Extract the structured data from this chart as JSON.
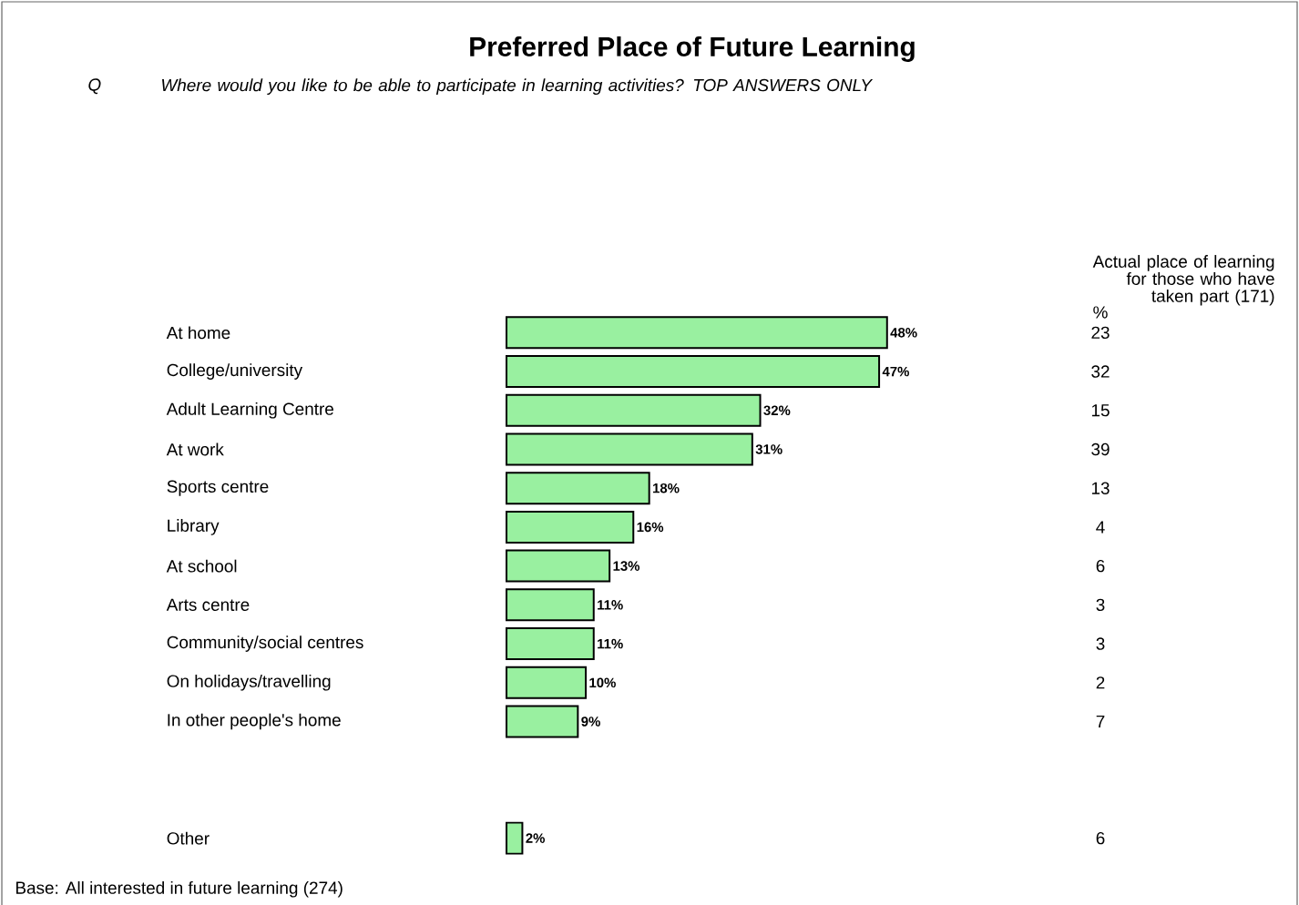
{
  "chart_data": {
    "type": "bar",
    "orientation": "horizontal",
    "title": "Preferred Place of Future Learning",
    "subtitle": "Where would you like to be able to participate in learning activities? TOP ANSWERS ONLY",
    "categories": [
      "At home",
      "College/university",
      "Adult Learning Centre",
      "At work",
      "Sports centre",
      "Library",
      "At school",
      "Arts centre",
      "Community/social centres",
      "On holidays/travelling",
      "In other people's home",
      null,
      null,
      "Other"
    ],
    "values": [
      48,
      47,
      32,
      31,
      18,
      16,
      13,
      11,
      11,
      10,
      9,
      null,
      null,
      2
    ],
    "value_labels": [
      "48%",
      "47%",
      "32%",
      "31%",
      "18%",
      "16%",
      "13%",
      "11%",
      "11%",
      "10%",
      "9%",
      null,
      null,
      "2%"
    ],
    "color": "#99f0a0",
    "annotations": [
      "Q",
      "Base: All interested in future learning (274)",
      "Actual place of learning for those who have taken part (171)",
      "%",
      "23",
      "32",
      "15",
      "39",
      "13",
      "4",
      "6",
      "3",
      "3",
      "2",
      "7",
      "6"
    ]
  }
}
